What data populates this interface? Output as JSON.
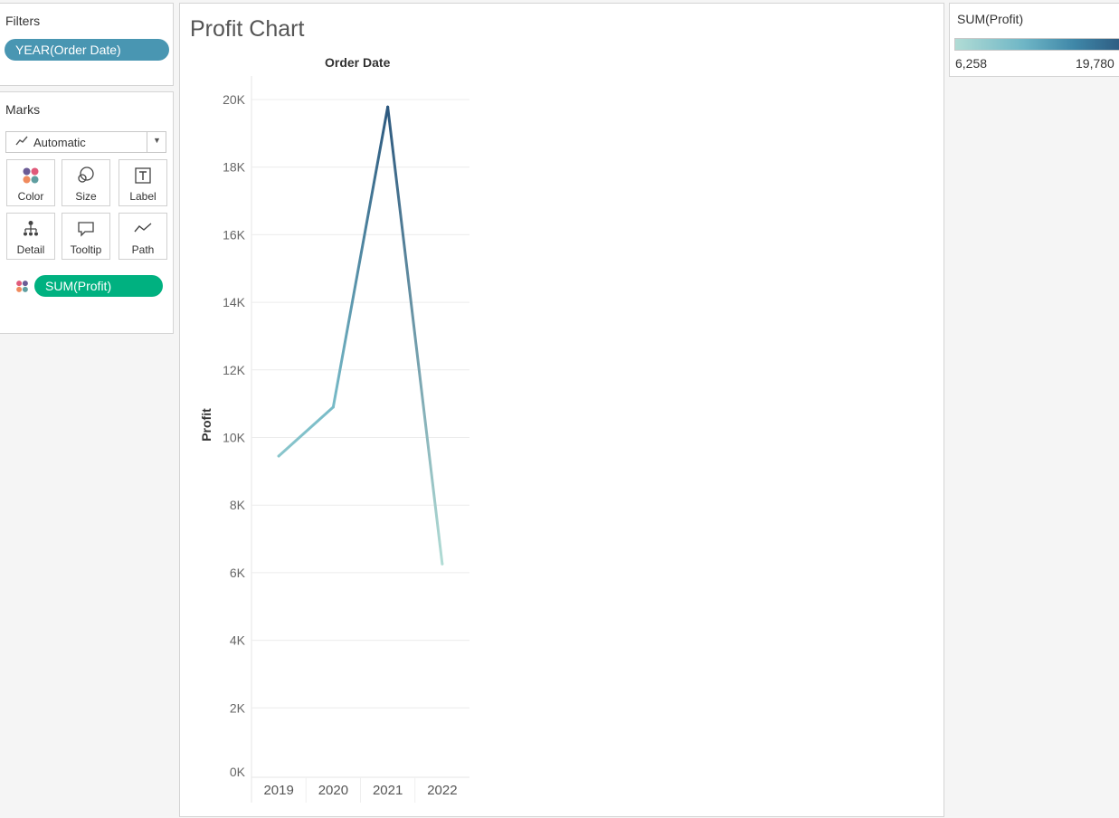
{
  "filters": {
    "title": "Filters",
    "pill_label": "YEAR(Order Date)",
    "pill_color": "#4996b2"
  },
  "marks": {
    "title": "Marks",
    "mark_type": "Automatic",
    "buttons": [
      {
        "label": "Color",
        "icon": "color-dots-icon"
      },
      {
        "label": "Size",
        "icon": "size-circles-icon"
      },
      {
        "label": "Label",
        "icon": "text-label-icon"
      },
      {
        "label": "Detail",
        "icon": "detail-tree-icon"
      },
      {
        "label": "Tooltip",
        "icon": "tooltip-bubble-icon"
      },
      {
        "label": "Path",
        "icon": "path-line-icon"
      }
    ],
    "field_pill_label": "SUM(Profit)",
    "field_pill_color": "#00b180"
  },
  "chart": {
    "title": "Profit Chart"
  },
  "legend": {
    "title": "SUM(Profit)",
    "min_label": "6,258",
    "max_label": "19,780",
    "color_low": "#b1dcd5",
    "color_high": "#2c587e"
  },
  "chart_data": {
    "type": "line",
    "title": "Profit Chart",
    "xlabel": "Order Date",
    "ylabel": "Profit",
    "categories": [
      "2019",
      "2020",
      "2021",
      "2022"
    ],
    "values": [
      9450,
      10900,
      19780,
      6258
    ],
    "ylim": [
      0,
      20000
    ],
    "yticks": [
      0,
      2000,
      4000,
      6000,
      8000,
      10000,
      12000,
      14000,
      16000,
      18000,
      20000
    ],
    "ytick_labels": [
      "0K",
      "2K",
      "4K",
      "6K",
      "8K",
      "10K",
      "12K",
      "14K",
      "16K",
      "18K",
      "20K"
    ],
    "grid": true
  }
}
